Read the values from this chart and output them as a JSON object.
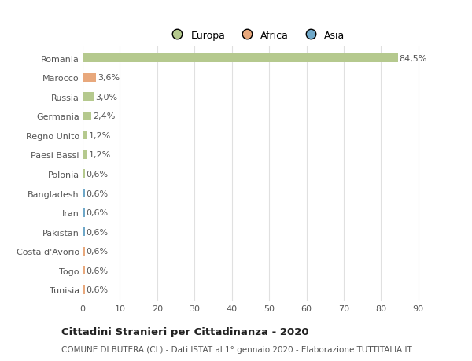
{
  "countries": [
    "Romania",
    "Marocco",
    "Russia",
    "Germania",
    "Regno Unito",
    "Paesi Bassi",
    "Polonia",
    "Bangladesh",
    "Iran",
    "Pakistan",
    "Costa d'Avorio",
    "Togo",
    "Tunisia"
  ],
  "values": [
    84.5,
    3.6,
    3.0,
    2.4,
    1.2,
    1.2,
    0.6,
    0.6,
    0.6,
    0.6,
    0.6,
    0.6,
    0.6
  ],
  "labels": [
    "84,5%",
    "3,6%",
    "3,0%",
    "2,4%",
    "1,2%",
    "1,2%",
    "0,6%",
    "0,6%",
    "0,6%",
    "0,6%",
    "0,6%",
    "0,6%",
    "0,6%"
  ],
  "continents": [
    "Europa",
    "Africa",
    "Europa",
    "Europa",
    "Europa",
    "Europa",
    "Europa",
    "Asia",
    "Asia",
    "Asia",
    "Africa",
    "Africa",
    "Africa"
  ],
  "colors": {
    "Europa": "#b5c98e",
    "Africa": "#e8a87c",
    "Asia": "#6fa8c9"
  },
  "title_main": "Cittadini Stranieri per Cittadinanza - 2020",
  "title_sub": "COMUNE DI BUTERA (CL) - Dati ISTAT al 1° gennaio 2020 - Elaborazione TUTTITALIA.IT",
  "xlim": [
    0,
    93
  ],
  "xticks": [
    0,
    10,
    20,
    30,
    40,
    50,
    60,
    70,
    80,
    90
  ],
  "bg_color": "#ffffff",
  "grid_color": "#e0e0e0",
  "bar_height": 0.45,
  "label_fontsize": 8.0,
  "tick_fontsize": 8.0,
  "title_fontsize": 9.5,
  "sub_fontsize": 7.5
}
